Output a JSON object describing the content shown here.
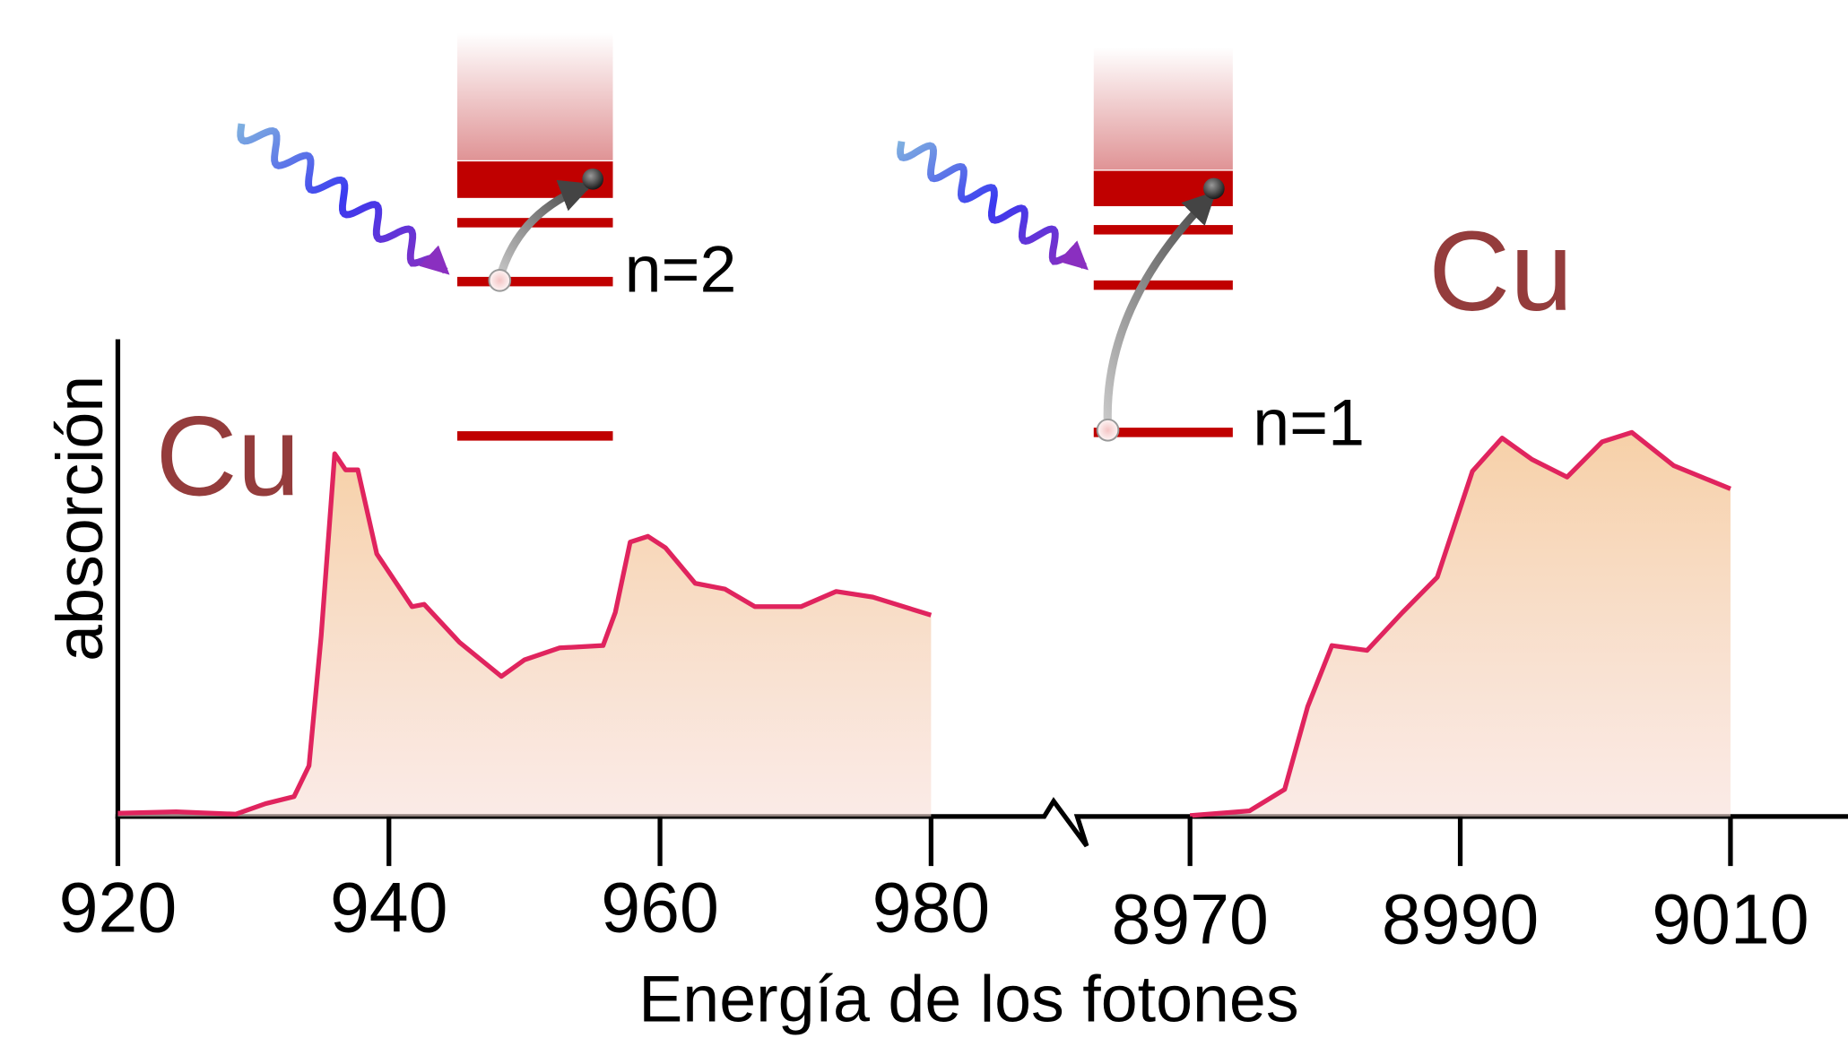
{
  "chart_data": [
    {
      "type": "area",
      "ylabel": "absorción",
      "xlabel": "Energía de los fotones",
      "annotations": [
        "Cu",
        "n=2"
      ],
      "xlim": [
        920,
        988
      ],
      "xticks": [
        920,
        940,
        960,
        980
      ],
      "ylim": [
        0,
        1
      ],
      "x": [
        920,
        924.3,
        928.7,
        930.9,
        933,
        934.1,
        935,
        936,
        936.8,
        937.7,
        939.1,
        941.7,
        942.6,
        945.2,
        948.3,
        950,
        952.6,
        955.8,
        956.7,
        957.8,
        959.1,
        960.4,
        962.6,
        964.8,
        967,
        970.4,
        973,
        975.7,
        980
      ],
      "series": [
        {
          "color": "#e0245e",
          "values": [
            0.007,
            0.01,
            0.005,
            0.027,
            0.042,
            0.107,
            0.38,
            0.764,
            0.73,
            0.73,
            0.553,
            0.442,
            0.447,
            0.367,
            0.295,
            0.33,
            0.355,
            0.36,
            0.43,
            0.578,
            0.59,
            0.566,
            0.491,
            0.479,
            0.442,
            0.442,
            0.474,
            0.462,
            0.424
          ]
        }
      ]
    },
    {
      "type": "area",
      "annotations": [
        "Cu",
        "n=1"
      ],
      "xlim": [
        8962,
        9018
      ],
      "xticks": [
        8970,
        8990,
        9010
      ],
      "ylim": [
        0,
        1
      ],
      "x": [
        8970,
        8974.4,
        8977,
        8978.7,
        8980.5,
        8983.1,
        8985.7,
        8988.3,
        8990.9,
        8993.1,
        8995.3,
        8997.9,
        9000.5,
        9002.7,
        9005.8,
        9010
      ],
      "series": [
        {
          "color": "#e0245e",
          "values": [
            0.002,
            0.012,
            0.057,
            0.231,
            0.36,
            0.35,
            0.429,
            0.504,
            0.727,
            0.797,
            0.752,
            0.715,
            0.789,
            0.809,
            0.739,
            0.69
          ]
        }
      ]
    }
  ]
}
